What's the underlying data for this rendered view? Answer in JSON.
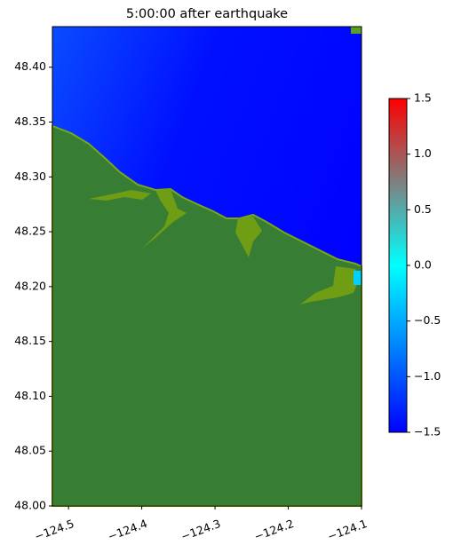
{
  "chart_data": {
    "type": "map",
    "title": "5:00:00 after earthquake",
    "xlim": [
      -124.522,
      -124.1
    ],
    "ylim": [
      48.0,
      48.437
    ],
    "xticks": [
      {
        "value": -124.5,
        "label": "−124.5"
      },
      {
        "value": -124.4,
        "label": "−124.4"
      },
      {
        "value": -124.3,
        "label": "−124.3"
      },
      {
        "value": -124.2,
        "label": "−124.2"
      },
      {
        "value": -124.1,
        "label": "−124.1"
      }
    ],
    "yticks": [
      {
        "value": 48.0,
        "label": "48.00"
      },
      {
        "value": 48.05,
        "label": "48.05"
      },
      {
        "value": 48.1,
        "label": "48.10"
      },
      {
        "value": 48.15,
        "label": "48.15"
      },
      {
        "value": 48.2,
        "label": "48.20"
      },
      {
        "value": 48.25,
        "label": "48.25"
      },
      {
        "value": 48.3,
        "label": "48.30"
      },
      {
        "value": 48.35,
        "label": "48.35"
      },
      {
        "value": 48.4,
        "label": "48.40"
      }
    ],
    "colorbar": {
      "lim": [
        -1.5,
        1.5
      ],
      "ticks": [
        {
          "value": -1.5,
          "label": "−1.5"
        },
        {
          "value": -1.0,
          "label": "−1.0"
        },
        {
          "value": -0.5,
          "label": "−0.5"
        },
        {
          "value": 0.0,
          "label": "0.0"
        },
        0.5,
        {
          "value": 1.0,
          "label": "1.0"
        },
        1.5
      ],
      "colors": [
        "#0000ff",
        "#00ffff",
        "#ff0000"
      ]
    }
  }
}
